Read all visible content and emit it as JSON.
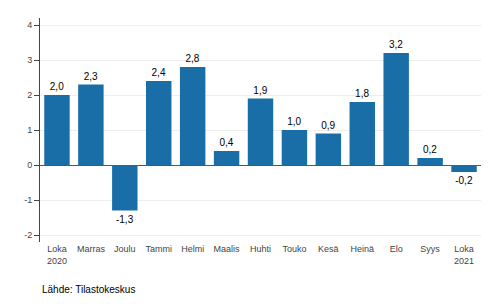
{
  "chart_data": {
    "type": "bar",
    "categories": [
      "Loka\n2020",
      "Marras",
      "Joulu",
      "Tammi",
      "Helmi",
      "Maalis",
      "Huhti",
      "Touko",
      "Kesä",
      "Heinä",
      "Elo",
      "Syys",
      "Loka\n2021"
    ],
    "values": [
      2.0,
      2.3,
      -1.3,
      2.4,
      2.8,
      0.4,
      1.9,
      1.0,
      0.9,
      1.8,
      3.2,
      0.2,
      -0.2
    ],
    "value_labels": [
      "2,0",
      "2,3",
      "-1,3",
      "2,4",
      "2,8",
      "0,4",
      "1,9",
      "1,0",
      "0,9",
      "1,8",
      "3,2",
      "0,2",
      "-0,2"
    ],
    "data_labels": true,
    "color": "#1a6ea8",
    "ylim": [
      -2.2,
      4.2
    ],
    "yticks": [
      -2,
      -1,
      0,
      1,
      2,
      3,
      4
    ],
    "grid": true,
    "annotations": [
      "Lähde: Tilastokeskus"
    ]
  }
}
